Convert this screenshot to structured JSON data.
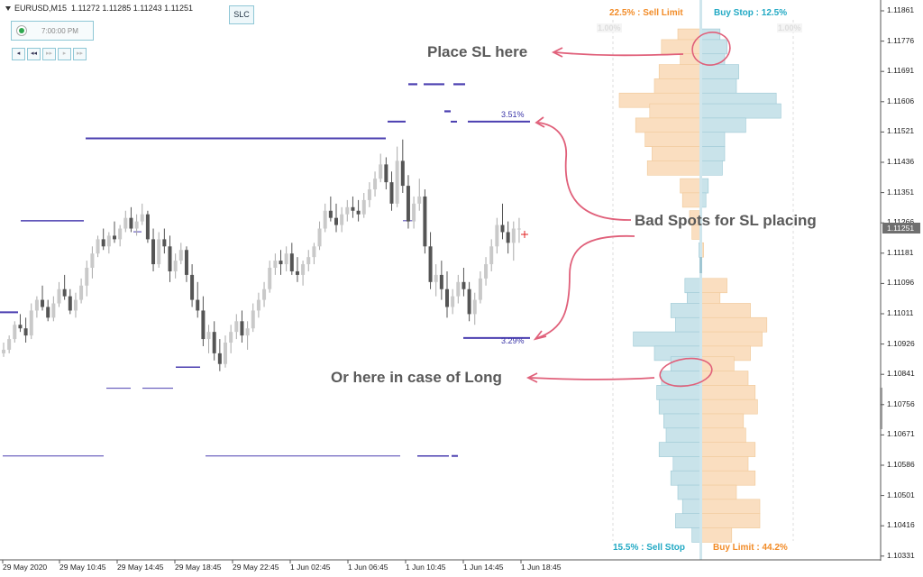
{
  "header": {
    "symbol": "EURUSD,M15",
    "ohlc": "1.11272 1.11285 1.11243 1.11251"
  },
  "clock": {
    "time": "7:00:00 PM"
  },
  "nav_buttons": [
    "◂",
    "◂◂",
    "▸▸",
    "▸",
    "▸▸"
  ],
  "slc_button": "SLC",
  "annotations": {
    "place_sl": "Place SL here",
    "bad_spots": "Bad Spots for SL placing",
    "long_case": "Or here in case of Long"
  },
  "order_book": {
    "sell_limit": "22.5% : Sell Limit",
    "buy_stop": "Buy Stop : 12.5%",
    "sell_stop": "15.5% : Sell Stop",
    "buy_limit": "Buy Limit : 44.2%",
    "ghost_left": "1.00%",
    "ghost_right": "1.00%",
    "colors": {
      "orange_bar": "#fadec0",
      "teal_bar": "#c9e3ea",
      "orange_text": "#f28c28",
      "teal_text": "#22a9c4"
    }
  },
  "level_labels": {
    "upper": "3.51%",
    "lower": "3.29%"
  },
  "price_axis": {
    "ticks": [
      "1.11861",
      "1.11776",
      "1.11691",
      "1.11606",
      "1.11521",
      "1.11436",
      "1.11351",
      "1.11266",
      "1.11181",
      "1.11096",
      "1.11011",
      "1.10926",
      "1.10841",
      "1.10756",
      "1.10671",
      "1.10586",
      "1.10501",
      "1.10416",
      "1.10331"
    ],
    "current": "1.11251"
  },
  "time_axis": [
    "29 May 2020",
    "29 May 10:45",
    "29 May 14:45",
    "29 May 18:45",
    "29 May 22:45",
    "1 Jun 02:45",
    "1 Jun 06:45",
    "1 Jun 10:45",
    "1 Jun 14:45",
    "1 Jun 18:45"
  ],
  "chart_data": {
    "type": "candlestick",
    "symbol": "EURUSD",
    "timeframe": "M15",
    "ylim": [
      1.10305,
      1.11905
    ],
    "candles": [
      [
        1.109,
        1.1093,
        1.1089,
        1.1091
      ],
      [
        1.1091,
        1.1095,
        1.109,
        1.1094
      ],
      [
        1.1094,
        1.1099,
        1.1093,
        1.1098
      ],
      [
        1.1098,
        1.1101,
        1.1096,
        1.1097
      ],
      [
        1.1097,
        1.11,
        1.1093,
        1.1095
      ],
      [
        1.1095,
        1.1104,
        1.1094,
        1.1102
      ],
      [
        1.1102,
        1.1106,
        1.11,
        1.1105
      ],
      [
        1.1105,
        1.1109,
        1.1102,
        1.1103
      ],
      [
        1.1103,
        1.1105,
        1.1099,
        1.11
      ],
      [
        1.11,
        1.1106,
        1.1099,
        1.1104
      ],
      [
        1.1104,
        1.111,
        1.1103,
        1.1108
      ],
      [
        1.1108,
        1.1112,
        1.1105,
        1.1106
      ],
      [
        1.1106,
        1.1108,
        1.1101,
        1.1102
      ],
      [
        1.1102,
        1.1107,
        1.11,
        1.1105
      ],
      [
        1.1105,
        1.1111,
        1.1104,
        1.1109
      ],
      [
        1.1109,
        1.1116,
        1.1106,
        1.1114
      ],
      [
        1.1114,
        1.112,
        1.1111,
        1.1118
      ],
      [
        1.1118,
        1.1123,
        1.1117,
        1.1122
      ],
      [
        1.1122,
        1.1125,
        1.1119,
        1.112
      ],
      [
        1.112,
        1.1124,
        1.1118,
        1.1123
      ],
      [
        1.1123,
        1.1127,
        1.1121,
        1.1122
      ],
      [
        1.1122,
        1.1126,
        1.112,
        1.1125
      ],
      [
        1.1125,
        1.113,
        1.1124,
        1.1128
      ],
      [
        1.1128,
        1.1131,
        1.1124,
        1.1125
      ],
      [
        1.1125,
        1.1129,
        1.1123,
        1.1127
      ],
      [
        1.1127,
        1.1132,
        1.1126,
        1.1129
      ],
      [
        1.1129,
        1.113,
        1.1121,
        1.1122
      ],
      [
        1.1122,
        1.1125,
        1.1113,
        1.1115
      ],
      [
        1.1115,
        1.1124,
        1.1114,
        1.1122
      ],
      [
        1.1122,
        1.1125,
        1.1118,
        1.112
      ],
      [
        1.112,
        1.1123,
        1.111,
        1.1113
      ],
      [
        1.1113,
        1.1118,
        1.1111,
        1.1116
      ],
      [
        1.1116,
        1.1121,
        1.1115,
        1.1119
      ],
      [
        1.1119,
        1.112,
        1.111,
        1.1112
      ],
      [
        1.1112,
        1.1115,
        1.1103,
        1.1105
      ],
      [
        1.1105,
        1.111,
        1.11,
        1.1102
      ],
      [
        1.1102,
        1.1106,
        1.1092,
        1.1094
      ],
      [
        1.1094,
        1.1098,
        1.109,
        1.1096
      ],
      [
        1.1096,
        1.1099,
        1.1088,
        1.109
      ],
      [
        1.109,
        1.1094,
        1.1085,
        1.1087
      ],
      [
        1.1087,
        1.1095,
        1.1086,
        1.1093
      ],
      [
        1.1093,
        1.1098,
        1.109,
        1.1096
      ],
      [
        1.1096,
        1.1101,
        1.1094,
        1.1099
      ],
      [
        1.1099,
        1.1102,
        1.1093,
        1.1095
      ],
      [
        1.1095,
        1.1099,
        1.1091,
        1.1097
      ],
      [
        1.1097,
        1.1104,
        1.1096,
        1.1102
      ],
      [
        1.1102,
        1.1107,
        1.11,
        1.1105
      ],
      [
        1.1105,
        1.111,
        1.1103,
        1.1108
      ],
      [
        1.1108,
        1.1116,
        1.1107,
        1.1114
      ],
      [
        1.1114,
        1.1118,
        1.1112,
        1.1116
      ],
      [
        1.1116,
        1.1119,
        1.1112,
        1.1115
      ],
      [
        1.1115,
        1.112,
        1.1113,
        1.1118
      ],
      [
        1.1118,
        1.1121,
        1.1112,
        1.1113
      ],
      [
        1.1113,
        1.1117,
        1.111,
        1.1112
      ],
      [
        1.1112,
        1.1116,
        1.1109,
        1.1115
      ],
      [
        1.1115,
        1.1119,
        1.1113,
        1.1117
      ],
      [
        1.1117,
        1.1121,
        1.1115,
        1.112
      ],
      [
        1.112,
        1.1127,
        1.1119,
        1.1125
      ],
      [
        1.1125,
        1.1132,
        1.1124,
        1.113
      ],
      [
        1.113,
        1.1134,
        1.1127,
        1.1128
      ],
      [
        1.1128,
        1.1132,
        1.1124,
        1.1126
      ],
      [
        1.1126,
        1.1131,
        1.1124,
        1.1129
      ],
      [
        1.1129,
        1.1133,
        1.1127,
        1.1131
      ],
      [
        1.1131,
        1.1134,
        1.1128,
        1.113
      ],
      [
        1.113,
        1.1133,
        1.1127,
        1.1129
      ],
      [
        1.1129,
        1.1135,
        1.1128,
        1.1133
      ],
      [
        1.1133,
        1.1138,
        1.1131,
        1.1136
      ],
      [
        1.1136,
        1.1141,
        1.1134,
        1.1139
      ],
      [
        1.1139,
        1.1146,
        1.1138,
        1.1143
      ],
      [
        1.1143,
        1.1145,
        1.1136,
        1.1138
      ],
      [
        1.1138,
        1.1141,
        1.113,
        1.1132
      ],
      [
        1.1132,
        1.1148,
        1.1131,
        1.1144
      ],
      [
        1.1144,
        1.115,
        1.1135,
        1.1137
      ],
      [
        1.1137,
        1.114,
        1.1125,
        1.1127
      ],
      [
        1.1127,
        1.1134,
        1.1125,
        1.1132
      ],
      [
        1.1132,
        1.1139,
        1.113,
        1.1134
      ],
      [
        1.1134,
        1.1136,
        1.1118,
        1.112
      ],
      [
        1.112,
        1.1124,
        1.1108,
        1.111
      ],
      [
        1.111,
        1.1115,
        1.1106,
        1.1112
      ],
      [
        1.1112,
        1.1116,
        1.1105,
        1.1108
      ],
      [
        1.1108,
        1.1113,
        1.11,
        1.1103
      ],
      [
        1.1103,
        1.1108,
        1.1101,
        1.1106
      ],
      [
        1.1106,
        1.1112,
        1.1104,
        1.111
      ],
      [
        1.111,
        1.1114,
        1.1106,
        1.1108
      ],
      [
        1.1108,
        1.111,
        1.1099,
        1.1101
      ],
      [
        1.1101,
        1.1107,
        1.1098,
        1.1105
      ],
      [
        1.1105,
        1.1113,
        1.1104,
        1.1111
      ],
      [
        1.1111,
        1.1117,
        1.1109,
        1.1115
      ],
      [
        1.1115,
        1.1122,
        1.1113,
        1.112
      ],
      [
        1.112,
        1.1128,
        1.1118,
        1.1126
      ],
      [
        1.1126,
        1.1132,
        1.1122,
        1.1124
      ],
      [
        1.1124,
        1.1127,
        1.1118,
        1.1121
      ],
      [
        1.1121,
        1.1127,
        1.1116,
        1.1125
      ],
      [
        1.1125,
        1.1128,
        1.1121,
        1.1125
      ]
    ],
    "levels": [
      {
        "price": 1.1155,
        "label": "3.51%"
      },
      {
        "price": 1.11503
      },
      {
        "price": 1.11272
      },
      {
        "price": 1.11241
      },
      {
        "price": 1.11015
      },
      {
        "price": 1.10943,
        "label": "3.29%"
      },
      {
        "price": 1.10861
      },
      {
        "price": 1.10802
      },
      {
        "price": 1.10612
      }
    ],
    "order_book": {
      "sell_limit_pct": 22.5,
      "buy_stop_pct": 12.5,
      "sell_stop_pct": 15.5,
      "buy_limit_pct": 44.2,
      "rows": [
        [
          1.1179,
          1.0,
          0.8
        ],
        [
          1.1176,
          1.7,
          1.1
        ],
        [
          1.1172,
          0.9,
          1.0
        ],
        [
          1.1169,
          1.8,
          1.6
        ],
        [
          1.1165,
          2.0,
          1.5
        ],
        [
          1.1161,
          3.5,
          3.2
        ],
        [
          1.1158,
          2.2,
          3.4
        ],
        [
          1.1154,
          2.8,
          1.9
        ],
        [
          1.115,
          2.4,
          1.0
        ],
        [
          1.1146,
          2.1,
          1.0
        ],
        [
          1.1142,
          2.3,
          0.9
        ],
        [
          1.1137,
          0.9,
          0.3
        ],
        [
          1.1133,
          0.8,
          0.2
        ],
        [
          1.1128,
          0.5,
          0.0
        ],
        [
          1.1124,
          0.4,
          0.0
        ],
        [
          1.1121,
          0.0,
          0.0
        ],
        [
          1.1119,
          0.1,
          0.1
        ],
        [
          1.1113,
          0.0,
          0.0
        ],
        [
          1.1109,
          0.7,
          1.1
        ],
        [
          1.1105,
          0.6,
          0.8
        ],
        [
          1.1102,
          1.3,
          2.1
        ],
        [
          1.1098,
          1.1,
          2.8
        ],
        [
          1.1094,
          2.9,
          2.6
        ],
        [
          1.109,
          2.0,
          2.1
        ],
        [
          1.1087,
          1.3,
          1.4
        ],
        [
          1.1083,
          1.7,
          2.0
        ],
        [
          1.1079,
          1.9,
          2.3
        ],
        [
          1.1075,
          1.8,
          2.4
        ],
        [
          1.1071,
          1.6,
          1.8
        ],
        [
          1.1067,
          1.5,
          1.9
        ],
        [
          1.1063,
          1.8,
          2.3
        ],
        [
          1.1059,
          1.2,
          2.0
        ],
        [
          1.1055,
          1.3,
          2.3
        ],
        [
          1.1051,
          1.0,
          1.5
        ],
        [
          1.1047,
          0.8,
          2.5
        ],
        [
          1.1043,
          1.1,
          2.5
        ],
        [
          1.1039,
          0.4,
          1.3
        ]
      ]
    }
  }
}
